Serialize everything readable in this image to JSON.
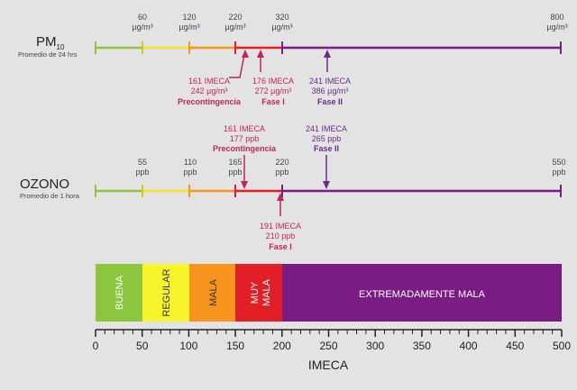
{
  "pm10": {
    "title": "PM",
    "subscript": "10",
    "subtitle": "Promedio de 24 hrs",
    "ticks": [
      {
        "value": "60",
        "unit": "µg/m³"
      },
      {
        "value": "120",
        "unit": "µg/m³"
      },
      {
        "value": "220",
        "unit": "µg/m³"
      },
      {
        "value": "320",
        "unit": "µg/m³"
      },
      {
        "value": "800",
        "unit": "µg/m³"
      }
    ],
    "annotations": [
      {
        "imeca": "161 IMECA",
        "conc": "242 µg/m³",
        "phase": "Precontingencia"
      },
      {
        "imeca": "176 IMECA",
        "conc": "272 µg/m³",
        "phase": "Fase I"
      },
      {
        "imeca": "241 IMECA",
        "conc": "386 µg/m³",
        "phase": "Fase II"
      }
    ]
  },
  "ozono": {
    "title": "OZONO",
    "subtitle": "Promedio de 1 hora",
    "ticks": [
      {
        "value": "55",
        "unit": "ppb"
      },
      {
        "value": "110",
        "unit": "ppb"
      },
      {
        "value": "165",
        "unit": "ppb"
      },
      {
        "value": "220",
        "unit": "ppb"
      },
      {
        "value": "550",
        "unit": "ppb"
      }
    ],
    "annotations": [
      {
        "imeca": "161 IMECA",
        "conc": "177 ppb",
        "phase": "Precontingencia"
      },
      {
        "imeca": "191 IMECA",
        "conc": "210 ppb",
        "phase": "Fase I"
      },
      {
        "imeca": "241 IMECA",
        "conc": "265 ppb",
        "phase": "Fase II"
      }
    ]
  },
  "categories": [
    {
      "label": "BUENA",
      "from": 0,
      "to": 50,
      "color": "#8cc63f"
    },
    {
      "label": "REGULAR",
      "from": 50,
      "to": 100,
      "color": "#f7f32d"
    },
    {
      "label": "MALA",
      "from": 100,
      "to": 150,
      "color": "#f7941d"
    },
    {
      "label": "MUY MALA",
      "from": 150,
      "to": 200,
      "color": "#e21f26"
    },
    {
      "label": "EXTREMADAMENTE MALA",
      "from": 200,
      "to": 500,
      "color": "#7b1b84"
    }
  ],
  "axis": {
    "title": "IMECA",
    "labels": [
      "0",
      "50",
      "100",
      "150",
      "200",
      "250",
      "300",
      "350",
      "400",
      "450",
      "500"
    ]
  },
  "colors": {
    "pink": "#c0245b",
    "purple": "#6a2c86"
  }
}
